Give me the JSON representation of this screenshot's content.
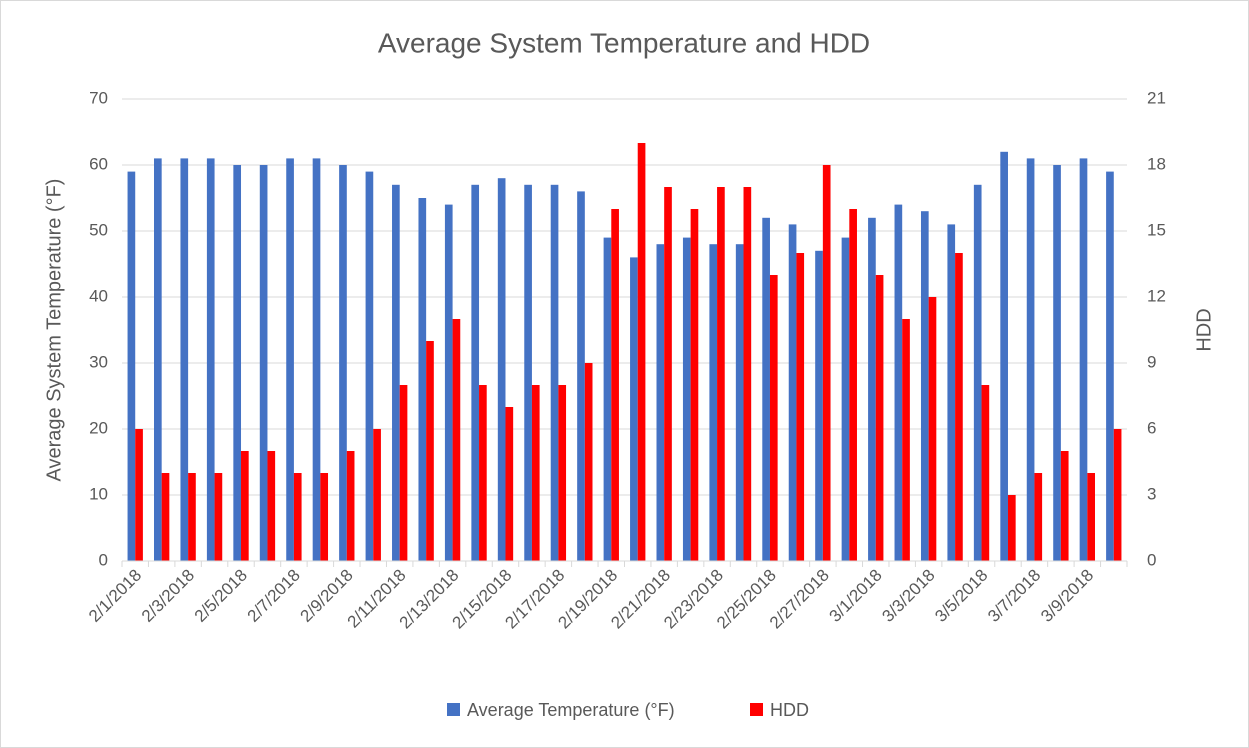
{
  "chart_data": {
    "type": "bar",
    "title": "Average System Temperature and HDD",
    "y_label": "Average System Temperature (°F)",
    "y2_label": "HDD",
    "categories": [
      "2/1/2018",
      null,
      "2/3/2018",
      null,
      "2/5/2018",
      null,
      "2/7/2018",
      null,
      "2/9/2018",
      null,
      "2/11/2018",
      null,
      "2/13/2018",
      null,
      "2/15/2018",
      null,
      "2/17/2018",
      null,
      "2/19/2018",
      null,
      "2/21/2018",
      null,
      "2/23/2018",
      null,
      "2/25/2018",
      null,
      "2/27/2018",
      null,
      "3/1/2018",
      null,
      "3/3/2018",
      null,
      "3/5/2018",
      null,
      "3/7/2018",
      null,
      "3/9/2018",
      null
    ],
    "series": [
      {
        "name": "Average Temperature (°F)",
        "color": "#4472c4",
        "values": [
          59,
          61,
          61,
          61,
          60,
          60,
          61,
          61,
          60,
          59,
          57,
          55,
          54,
          57,
          58,
          57,
          57,
          56,
          49,
          46,
          48,
          49,
          48,
          48,
          52,
          51,
          47,
          49,
          52,
          54,
          53,
          51,
          57,
          62,
          61,
          60,
          61,
          59
        ]
      },
      {
        "name": "HDD",
        "color": "#ff0000",
        "axis": "y2",
        "values": [
          6,
          4,
          4,
          4,
          5,
          5,
          4,
          4,
          5,
          6,
          8,
          10,
          11,
          8,
          7,
          8,
          8,
          9,
          16,
          19,
          17,
          16,
          17,
          17,
          13,
          14,
          18,
          16,
          13,
          11,
          12,
          14,
          8,
          3,
          4,
          5,
          4,
          6
        ]
      }
    ],
    "ylim": [
      0,
      70
    ],
    "yticks": [
      0,
      10,
      20,
      30,
      40,
      50,
      60,
      70
    ],
    "y2lim": [
      0,
      21
    ],
    "y2ticks": [
      0,
      3,
      6,
      9,
      12,
      15,
      18,
      21
    ],
    "grid": true,
    "legend": "bottom"
  }
}
